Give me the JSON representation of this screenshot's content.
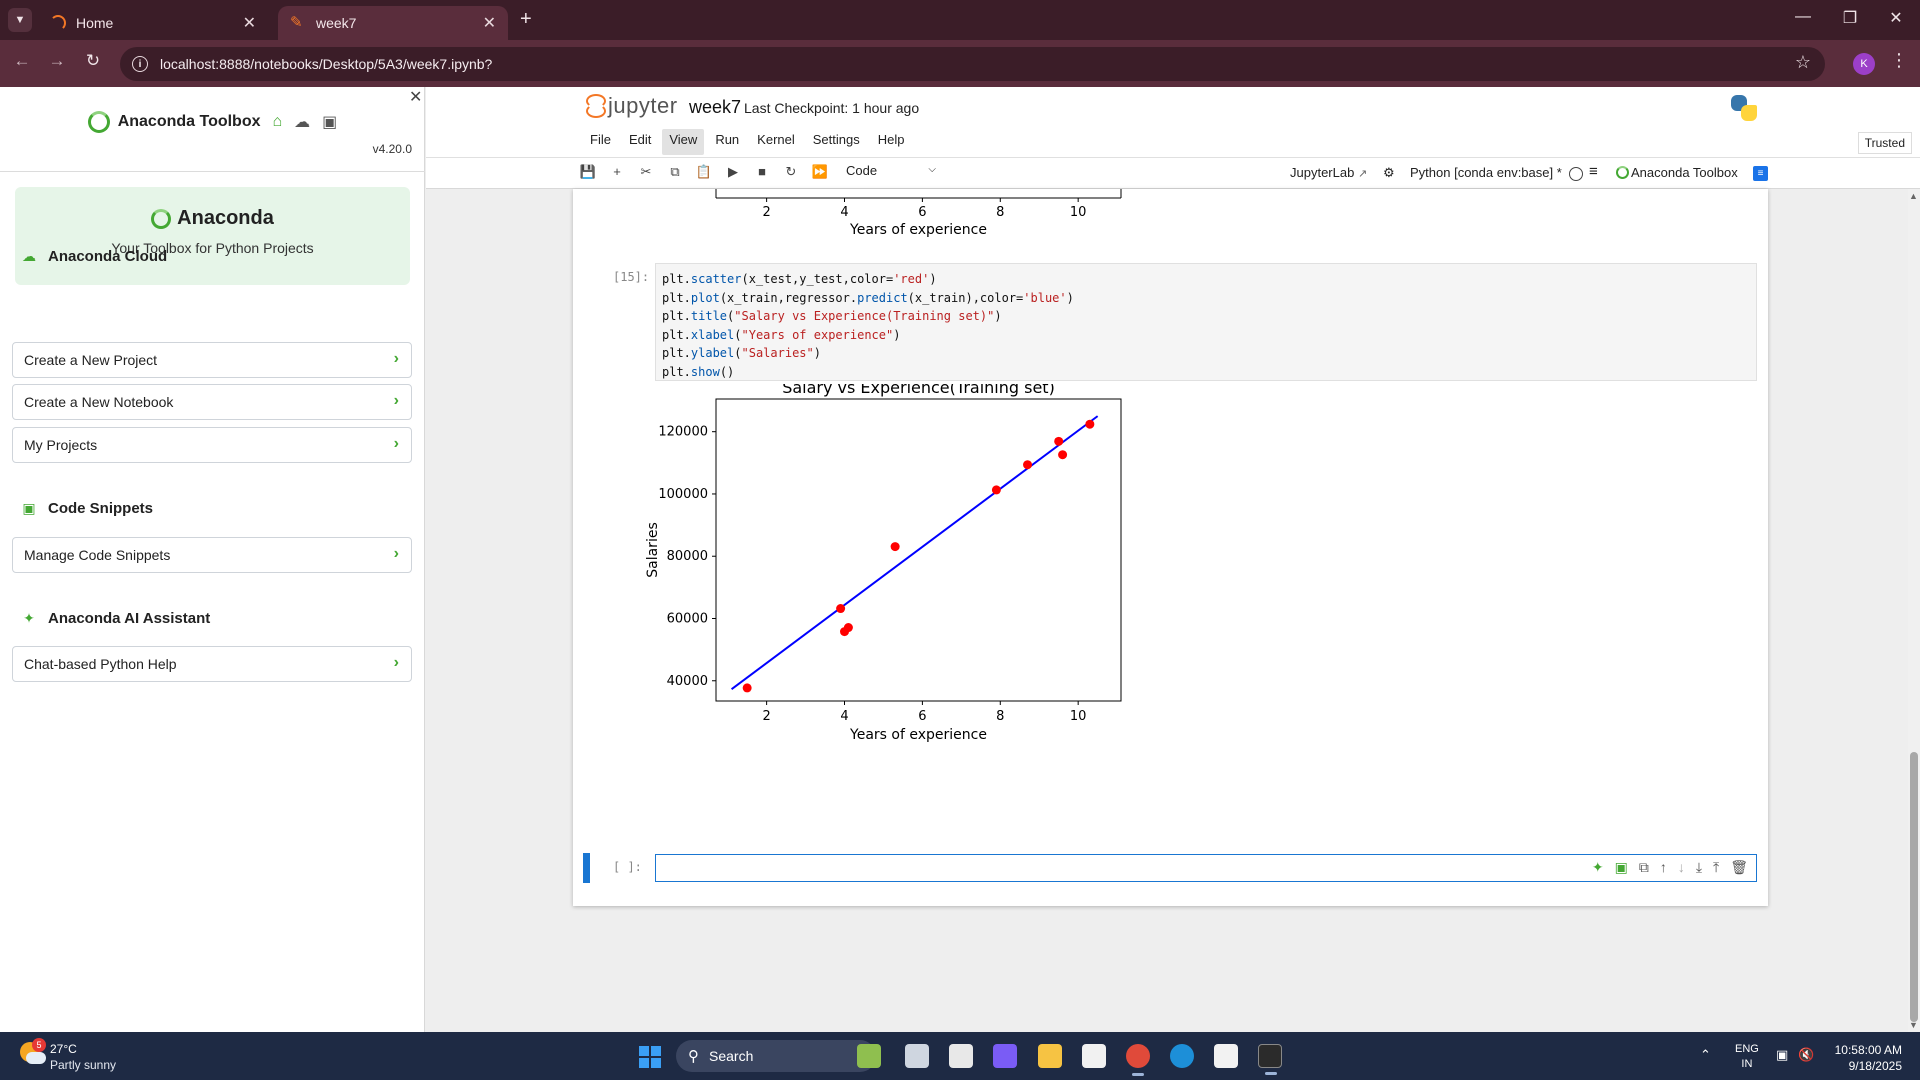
{
  "browser": {
    "tabs": [
      {
        "title": "Home",
        "active": false
      },
      {
        "title": "week7",
        "active": true
      }
    ],
    "url": "localhost:8888/notebooks/Desktop/5A3/week7.ipynb?",
    "profile_initial": "K"
  },
  "sidebar": {
    "title": "Anaconda Toolbox",
    "version": "v4.20.0",
    "hero_title": "Anaconda",
    "hero_subtitle": "Your Toolbox for Python Projects",
    "sections": [
      {
        "heading": "Anaconda Cloud",
        "icon": "cloud-icon",
        "items": [
          "Create a New Project",
          "Create a New Notebook",
          "My Projects"
        ]
      },
      {
        "heading": "Code Snippets",
        "icon": "code-snippet-icon",
        "items": [
          "Manage Code Snippets"
        ]
      },
      {
        "heading": "Anaconda AI Assistant",
        "icon": "sparkle-icon",
        "items": [
          "Chat-based Python Help"
        ]
      }
    ],
    "accent_color": "#44a833"
  },
  "jupyter": {
    "logo_text": "jupyter",
    "notebook_name": "week7",
    "checkpoint": "Last Checkpoint: 1 hour ago",
    "menu": [
      "File",
      "Edit",
      "View",
      "Run",
      "Kernel",
      "Settings",
      "Help"
    ],
    "selected_menu": "View",
    "trusted": "Trusted",
    "cell_type": "Code",
    "jupyterlab_link": "JupyterLab",
    "kernel": "Python [conda env:base] *",
    "toolbox_label": "Anaconda Toolbox"
  },
  "cells": {
    "prompt_15": "[15]:",
    "prompt_empty": "[ ]:",
    "code_15": [
      [
        {
          "t": "plt."
        },
        {
          "t": "scatter",
          "c": "func"
        },
        {
          "t": "(x_test,y_test,color="
        },
        {
          "t": "'red'",
          "c": "str"
        },
        {
          "t": ")"
        }
      ],
      [
        {
          "t": "plt."
        },
        {
          "t": "plot",
          "c": "func"
        },
        {
          "t": "(x_train,regressor."
        },
        {
          "t": "predict",
          "c": "func"
        },
        {
          "t": "(x_train),color="
        },
        {
          "t": "'blue'",
          "c": "str"
        },
        {
          "t": ")"
        }
      ],
      [
        {
          "t": "plt."
        },
        {
          "t": "title",
          "c": "func"
        },
        {
          "t": "("
        },
        {
          "t": "\"Salary vs Experience(Training set)\"",
          "c": "str"
        },
        {
          "t": ")"
        }
      ],
      [
        {
          "t": "plt."
        },
        {
          "t": "xlabel",
          "c": "func"
        },
        {
          "t": "("
        },
        {
          "t": "\"Years of experience\"",
          "c": "str"
        },
        {
          "t": ")"
        }
      ],
      [
        {
          "t": "plt."
        },
        {
          "t": "ylabel",
          "c": "func"
        },
        {
          "t": "("
        },
        {
          "t": "\"Salaries\"",
          "c": "str"
        },
        {
          "t": ")"
        }
      ],
      [
        {
          "t": "plt."
        },
        {
          "t": "show",
          "c": "func"
        },
        {
          "t": "()"
        }
      ]
    ]
  },
  "chart_data": [
    {
      "type": "scatter",
      "title": "",
      "xlabel": "Years of experience",
      "ylabel": "",
      "xlim": [
        0.7,
        11.1
      ],
      "x_ticks": [
        2,
        4,
        6,
        8,
        10
      ],
      "partial": true
    },
    {
      "type": "scatter",
      "title": "Salary vs Experience(Training set)",
      "xlabel": "Years of experience",
      "ylabel": "Salaries",
      "xlim": [
        0.7,
        11.1
      ],
      "ylim": [
        33500,
        130500
      ],
      "x_ticks": [
        2,
        4,
        6,
        8,
        10
      ],
      "y_ticks": [
        40000,
        60000,
        80000,
        100000,
        120000
      ],
      "grid": false,
      "series": [
        {
          "type": "scatter",
          "color": "#ff0000",
          "x": [
            1.5,
            3.9,
            4.0,
            4.1,
            5.3,
            7.9,
            8.7,
            9.5,
            9.6,
            10.3
          ],
          "y": [
            37700,
            63200,
            55800,
            57100,
            83100,
            101300,
            109400,
            116900,
            112600,
            122400
          ]
        },
        {
          "type": "line",
          "color": "#0000ff",
          "x": [
            1.1,
            10.5
          ],
          "y": [
            37300,
            125000
          ]
        }
      ]
    }
  ],
  "taskbar": {
    "weather_temp": "27°C",
    "weather_desc": "Partly sunny",
    "weather_badge": "5",
    "search_label": "Search",
    "lang_1": "ENG",
    "lang_2": "IN",
    "time": "10:58:00 AM",
    "date": "9/18/2025"
  }
}
